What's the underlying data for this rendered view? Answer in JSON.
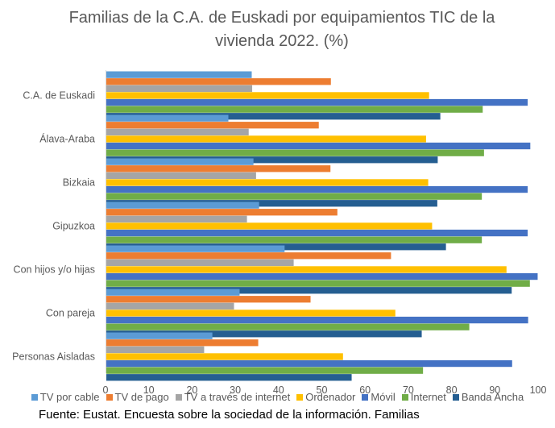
{
  "chart_data": {
    "type": "bar",
    "orientation": "horizontal",
    "title": "Familias de la C.A. de Euskadi por equipamientos TIC de la vivienda 2022. (%)",
    "title_lines": [
      "Familias de la C.A. de Euskadi por equipamientos TIC de la",
      "vivienda 2022. (%)"
    ],
    "xlabel": "",
    "ylabel": "",
    "xlim": [
      0,
      100
    ],
    "xticks": [
      0,
      10,
      20,
      30,
      40,
      50,
      60,
      70,
      80,
      90,
      100
    ],
    "grid": false,
    "legend_position": "bottom",
    "categories": [
      "C.A. de Euskadi",
      "Álava-Araba",
      "Bizkaia",
      "Gipuzkoa",
      "Con hijos y/o hijas",
      "Con pareja",
      "Personas Aisladas"
    ],
    "series": [
      {
        "name": "TV por cable",
        "color": "#5B9BD5",
        "values": [
          33.8,
          28.4,
          34.2,
          35.5,
          41.4,
          31.0,
          24.7
        ]
      },
      {
        "name": "TV de pago",
        "color": "#ED7D31",
        "values": [
          52.1,
          49.3,
          52.0,
          53.6,
          66.0,
          47.4,
          35.3
        ]
      },
      {
        "name": "TV a través de internet",
        "color": "#A5A5A5",
        "values": [
          33.9,
          33.1,
          34.8,
          32.7,
          43.5,
          29.7,
          22.8
        ]
      },
      {
        "name": "Ordenador",
        "color": "#FFC000",
        "values": [
          74.8,
          74.1,
          74.6,
          75.5,
          92.7,
          67.0,
          54.9
        ]
      },
      {
        "name": "Móvil",
        "color": "#4472C4",
        "values": [
          97.6,
          98.2,
          97.6,
          97.6,
          99.9,
          97.7,
          94.0
        ]
      },
      {
        "name": "Internet",
        "color": "#70AD47",
        "values": [
          87.2,
          87.5,
          87.0,
          87.0,
          98.1,
          84.1,
          73.4
        ]
      },
      {
        "name": "Banda Ancha",
        "color": "#255E91",
        "values": [
          77.4,
          76.8,
          76.7,
          78.7,
          93.9,
          73.1,
          56.9
        ]
      }
    ]
  },
  "source": "Fuente: Eustat. Encuesta sobre la sociedad de la información. Familias"
}
